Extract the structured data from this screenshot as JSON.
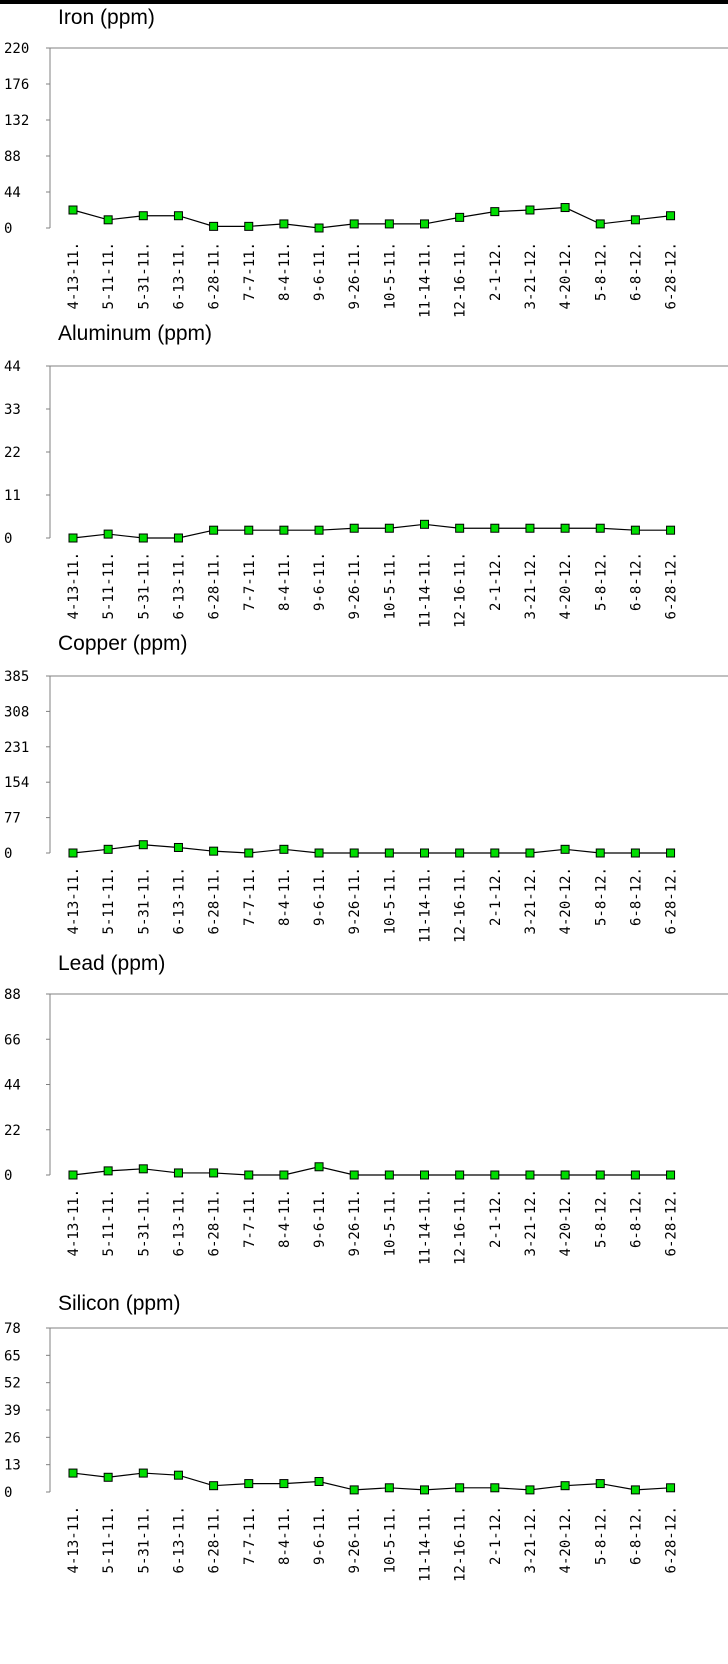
{
  "style": {
    "marker_color": "#00dd00",
    "line_color": "#000000",
    "axis_color": "#808080"
  },
  "chart_data": [
    {
      "type": "line",
      "title": "Iron (ppm)",
      "categories": [
        "4-13-11",
        "5-11-11",
        "5-31-11",
        "6-13-11",
        "6-28-11",
        "7-7-11",
        "8-4-11",
        "9-6-11",
        "9-26-11",
        "10-5-11",
        "11-14-11",
        "12-16-11",
        "2-1-12",
        "3-21-12",
        "4-20-12",
        "5-8-12",
        "6-8-12",
        "6-28-12"
      ],
      "yticks": [
        "220",
        "176",
        "132",
        "88",
        "44",
        "0"
      ],
      "ylim": [
        0,
        220
      ],
      "values": [
        22,
        10,
        15,
        15,
        2,
        2,
        5,
        0,
        5,
        5,
        5,
        13,
        20,
        22,
        25,
        5,
        10,
        15
      ]
    },
    {
      "type": "line",
      "title": "Aluminum (ppm)",
      "categories": [
        "4-13-11",
        "5-11-11",
        "5-31-11",
        "6-13-11",
        "6-28-11",
        "7-7-11",
        "8-4-11",
        "9-6-11",
        "9-26-11",
        "10-5-11",
        "11-14-11",
        "12-16-11",
        "2-1-12",
        "3-21-12",
        "4-20-12",
        "5-8-12",
        "6-8-12",
        "6-28-12"
      ],
      "yticks": [
        "44",
        "33",
        "22",
        "11",
        "0"
      ],
      "ylim": [
        0,
        44
      ],
      "values": [
        0,
        1,
        0,
        0,
        2,
        2,
        2,
        2,
        2.5,
        2.5,
        3.5,
        2.5,
        2.5,
        2.5,
        2.5,
        2.5,
        2,
        2
      ]
    },
    {
      "type": "line",
      "title": "Copper (ppm)",
      "categories": [
        "4-13-11",
        "5-11-11",
        "5-31-11",
        "6-13-11",
        "6-28-11",
        "7-7-11",
        "8-4-11",
        "9-6-11",
        "9-26-11",
        "10-5-11",
        "11-14-11",
        "12-16-11",
        "2-1-12",
        "3-21-12",
        "4-20-12",
        "5-8-12",
        "6-8-12",
        "6-28-12"
      ],
      "yticks": [
        "385",
        "308",
        "231",
        "154",
        "77",
        "0"
      ],
      "ylim": [
        0,
        385
      ],
      "values": [
        0,
        8,
        18,
        12,
        4,
        0,
        8,
        0,
        0,
        0,
        0,
        0,
        0,
        0,
        8,
        0,
        0,
        0
      ]
    },
    {
      "type": "line",
      "title": "Lead (ppm)",
      "categories": [
        "4-13-11",
        "5-11-11",
        "5-31-11",
        "6-13-11",
        "6-28-11",
        "7-7-11",
        "8-4-11",
        "9-6-11",
        "9-26-11",
        "10-5-11",
        "11-14-11",
        "12-16-11",
        "2-1-12",
        "3-21-12",
        "4-20-12",
        "5-8-12",
        "6-8-12",
        "6-28-12"
      ],
      "yticks": [
        "88",
        "66",
        "44",
        "22",
        "0"
      ],
      "ylim": [
        0,
        88
      ],
      "values": [
        0,
        2,
        3,
        1,
        1,
        0,
        0,
        4,
        0,
        0,
        0,
        0,
        0,
        0,
        0,
        0,
        0,
        0
      ]
    },
    {
      "type": "line",
      "title": "Silicon (ppm)",
      "categories": [
        "4-13-11",
        "5-11-11",
        "5-31-11",
        "6-13-11",
        "6-28-11",
        "7-7-11",
        "8-4-11",
        "9-6-11",
        "9-26-11",
        "10-5-11",
        "11-14-11",
        "12-16-11",
        "2-1-12",
        "3-21-12",
        "4-20-12",
        "5-8-12",
        "6-8-12",
        "6-28-12"
      ],
      "yticks": [
        "78",
        "65",
        "52",
        "39",
        "26",
        "13",
        "0"
      ],
      "ylim": [
        0,
        78
      ],
      "values": [
        9,
        7,
        9,
        8,
        3,
        4,
        4,
        5,
        1,
        2,
        1,
        2,
        2,
        1,
        3,
        4,
        1,
        2
      ]
    }
  ]
}
